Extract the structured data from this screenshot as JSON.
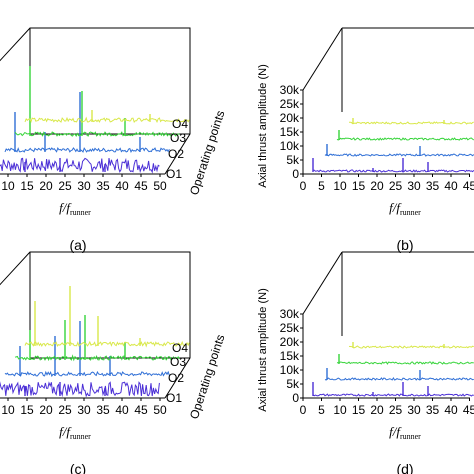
{
  "figure": {
    "panels": [
      {
        "id": "a",
        "panel_label": "(a)",
        "xlabel_f": "f/f",
        "xlabel_sub": "runner",
        "ylabel": "",
        "operating_points_label": "Operating points",
        "x_ticks": [
          "10",
          "15",
          "20",
          "25",
          "30",
          "35",
          "40",
          "45",
          "50"
        ],
        "y_ticks": []
      },
      {
        "id": "b",
        "panel_label": "(b)",
        "xlabel_f": "f/f",
        "xlabel_sub": "runner",
        "ylabel": "Axial thrust amplitude (N)",
        "operating_points_label": "",
        "x_ticks": [
          "0",
          "5",
          "10",
          "15",
          "20",
          "25",
          "30",
          "35",
          "40",
          "45"
        ],
        "y_ticks": [
          "0",
          "5k",
          "10k",
          "15k",
          "20k",
          "25k",
          "30k"
        ]
      },
      {
        "id": "c",
        "panel_label": "(c)",
        "xlabel_f": "f/f",
        "xlabel_sub": "runner",
        "ylabel": "",
        "operating_points_label": "Operating points",
        "x_ticks": [
          "10",
          "15",
          "20",
          "25",
          "30",
          "35",
          "40",
          "45",
          "50"
        ],
        "y_ticks": []
      },
      {
        "id": "d",
        "panel_label": "(d)",
        "xlabel_f": "f/f",
        "xlabel_sub": "runner",
        "ylabel": "Axial thrust amplitude (N)",
        "operating_points_label": "",
        "x_ticks": [
          "0",
          "5",
          "10",
          "15",
          "20",
          "25",
          "30",
          "35",
          "40",
          "45"
        ],
        "y_ticks": [
          "0",
          "5k",
          "10k",
          "15k",
          "20k",
          "25k",
          "30k"
        ]
      }
    ]
  },
  "chart_data": [
    {
      "type": "line",
      "panel": "(a)",
      "title": "",
      "xlabel": "f/f runner",
      "ylabel": "",
      "zlabel": "Operating points",
      "xlim": [
        5,
        50
      ],
      "series": [
        {
          "name": "O1",
          "color": "#4b2fd6",
          "x": [
            7,
            12,
            17,
            21,
            25,
            29,
            33,
            40
          ],
          "values": [
            600,
            500,
            700,
            600,
            900,
            500,
            600,
            400
          ]
        },
        {
          "name": "O2",
          "color": "#2f6fd6",
          "x": [
            7,
            12,
            17,
            25,
            31,
            40
          ],
          "values": [
            3000,
            1500,
            1200,
            6000,
            1000,
            600
          ]
        },
        {
          "name": "O3",
          "color": "#36d43a",
          "x": [
            7,
            12,
            17,
            22,
            26,
            29,
            40
          ],
          "values": [
            9000,
            2500,
            4000,
            2000,
            7000,
            1500,
            800
          ]
        },
        {
          "name": "O4",
          "color": "#d9e84a",
          "x": [
            12,
            17,
            22,
            26,
            40
          ],
          "values": [
            800,
            1000,
            700,
            1200,
            500
          ]
        }
      ]
    },
    {
      "type": "line",
      "panel": "(b)",
      "title": "",
      "xlabel": "f/f runner",
      "ylabel": "Axial thrust amplitude (N)",
      "zlabel": "",
      "xlim": [
        0,
        45
      ],
      "ylim": [
        0,
        30000
      ],
      "series": [
        {
          "name": "O1",
          "color": "#4b2fd6",
          "x": [
            3,
            8,
            13,
            17,
            25,
            30,
            35
          ],
          "values": [
            2000,
            1000,
            800,
            1200,
            3000,
            2500,
            800
          ]
        },
        {
          "name": "O2",
          "color": "#2f6fd6",
          "x": [
            3,
            8,
            17,
            25,
            35
          ],
          "values": [
            3500,
            1200,
            800,
            2500,
            600
          ]
        },
        {
          "name": "O3",
          "color": "#36d43a",
          "x": [
            3,
            9,
            17,
            25,
            35
          ],
          "values": [
            3000,
            1500,
            800,
            1000,
            500
          ]
        },
        {
          "name": "O4",
          "color": "#d9e84a",
          "x": [
            3,
            9,
            17,
            25,
            35
          ],
          "values": [
            1500,
            1000,
            600,
            800,
            400
          ]
        }
      ]
    },
    {
      "type": "line",
      "panel": "(c)",
      "title": "",
      "xlabel": "f/f runner",
      "ylabel": "",
      "zlabel": "Operating points",
      "xlim": [
        5,
        50
      ],
      "series": [
        {
          "name": "O1",
          "color": "#4b2fd6",
          "x": [
            7,
            12,
            17,
            21,
            25,
            29,
            33,
            40
          ],
          "values": [
            600,
            500,
            700,
            600,
            900,
            500,
            600,
            400
          ]
        },
        {
          "name": "O2",
          "color": "#2f6fd6",
          "x": [
            8,
            12,
            17,
            25,
            31,
            40
          ],
          "values": [
            2000,
            1200,
            3500,
            5000,
            1800,
            600
          ]
        },
        {
          "name": "O3",
          "color": "#36d43a",
          "x": [
            7,
            12,
            17,
            22,
            26,
            29,
            40
          ],
          "values": [
            2500,
            2000,
            4000,
            2000,
            4500,
            1500,
            800
          ]
        },
        {
          "name": "O4",
          "color": "#d9e84a",
          "x": [
            7,
            12,
            17,
            22,
            26,
            40
          ],
          "values": [
            4000,
            1000,
            6000,
            1200,
            2500,
            500
          ]
        }
      ]
    },
    {
      "type": "line",
      "panel": "(d)",
      "title": "",
      "xlabel": "f/f runner",
      "ylabel": "Axial thrust amplitude (N)",
      "zlabel": "",
      "xlim": [
        0,
        45
      ],
      "ylim": [
        0,
        30000
      ],
      "series": [
        {
          "name": "O1",
          "color": "#4b2fd6",
          "x": [
            3,
            8,
            13,
            17,
            25,
            30,
            35
          ],
          "values": [
            1500,
            800,
            600,
            1000,
            2000,
            1500,
            600
          ]
        },
        {
          "name": "O2",
          "color": "#2f6fd6",
          "x": [
            3,
            8,
            17,
            25,
            35
          ],
          "values": [
            2500,
            1000,
            700,
            1500,
            500
          ]
        },
        {
          "name": "O3",
          "color": "#36d43a",
          "x": [
            3,
            9,
            17,
            25,
            35
          ],
          "values": [
            2000,
            1000,
            600,
            800,
            400
          ]
        },
        {
          "name": "O4",
          "color": "#d9e84a",
          "x": [
            3,
            9,
            17,
            25,
            35
          ],
          "values": [
            1200,
            800,
            500,
            600,
            300
          ]
        }
      ]
    }
  ]
}
